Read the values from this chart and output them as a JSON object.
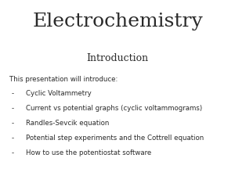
{
  "title": "Electrochemistry",
  "subtitle": "Introduction",
  "intro_text": "This presentation will introduce:",
  "bullet_points": [
    "Cyclic Voltammetry",
    "Current vs potential graphs (cyclic voltammograms)",
    "Randles-Sevcik equation",
    "Potential step experiments and the Cottrell equation",
    "How to use the potentiostat software"
  ],
  "background_color": "#ffffff",
  "text_color": "#2a2a2a",
  "title_fontsize": 18,
  "subtitle_fontsize": 9,
  "body_fontsize": 6.2,
  "title_font_family": "DejaVu Serif",
  "body_font_family": "DejaVu Sans"
}
